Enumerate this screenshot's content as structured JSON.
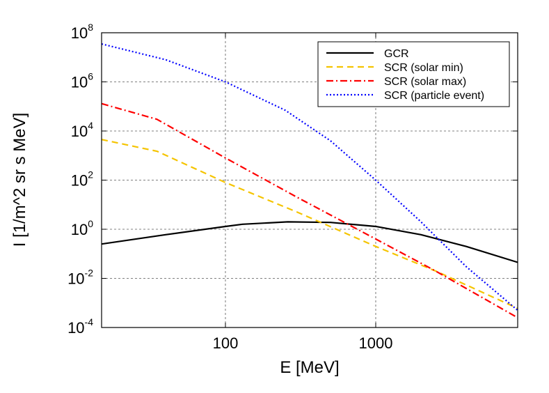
{
  "chart_data": {
    "type": "line",
    "xscale": "log",
    "yscale": "log",
    "xlim": [
      15,
      8800
    ],
    "ylim": [
      0.0001,
      100000000
    ],
    "grid": true,
    "xlabel": "E [MeV]",
    "ylabel": "I [1/m^2 sr s MeV]",
    "xticks": [
      {
        "value": 100,
        "label": "100"
      },
      {
        "value": 1000,
        "label": "1000"
      }
    ],
    "yticks": [
      {
        "value": 0.0001,
        "base": "10",
        "exp": "-4"
      },
      {
        "value": 0.01,
        "base": "10",
        "exp": "-2"
      },
      {
        "value": 1,
        "base": "10",
        "exp": "0"
      },
      {
        "value": 100,
        "base": "10",
        "exp": "2"
      },
      {
        "value": 10000,
        "base": "10",
        "exp": "4"
      },
      {
        "value": 1000000,
        "base": "10",
        "exp": "6"
      },
      {
        "value": 100000000,
        "base": "10",
        "exp": "8"
      }
    ],
    "legend_position": "top-right",
    "series": [
      {
        "name": "GCR",
        "color": "#000000",
        "dash": "solid",
        "x": [
          15,
          40,
          100,
          130,
          260,
          500,
          1000,
          2000,
          4000,
          8800
        ],
        "y": [
          0.25,
          0.6,
          1.3,
          1.6,
          2.0,
          1.9,
          1.3,
          0.6,
          0.2,
          0.045
        ]
      },
      {
        "name": "SCR (solar min)",
        "color": "#F5C400",
        "dash": "dashed",
        "x": [
          15,
          35,
          100,
          300,
          1000,
          2500,
          8800
        ],
        "y": [
          4500,
          1500,
          80,
          5,
          0.2,
          0.02,
          0.0006
        ]
      },
      {
        "name": "SCR (solar max)",
        "color": "#FF0000",
        "dash": "dashdot",
        "x": [
          15,
          35,
          100,
          300,
          1000,
          2500,
          8800
        ],
        "y": [
          130000,
          30000,
          800,
          20,
          0.4,
          0.02,
          0.00025
        ]
      },
      {
        "name": "SCR (particle event)",
        "color": "#0000FF",
        "dash": "dotted",
        "x": [
          15,
          40,
          100,
          250,
          500,
          1000,
          2000,
          4000,
          8800
        ],
        "y": [
          35000000,
          8000000,
          1000000,
          70000,
          4000,
          100,
          2,
          0.03,
          0.0005
        ]
      }
    ]
  }
}
